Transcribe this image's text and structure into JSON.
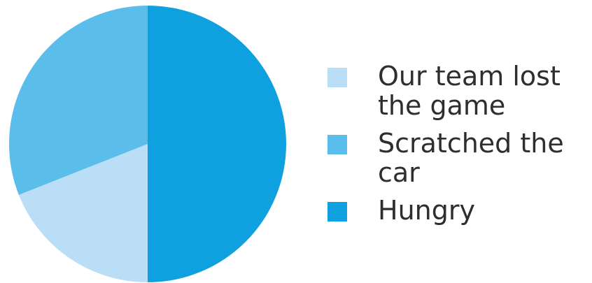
{
  "chart_data": {
    "type": "pie",
    "title": "",
    "legend_position": "right",
    "slices": [
      {
        "label": "Our team lost\nthe game",
        "value": 19,
        "color": "#b9def6"
      },
      {
        "label": "Scratched the car",
        "value": 31,
        "color": "#5bbde9"
      },
      {
        "label": "Hungry",
        "value": 50,
        "color": "#0fa0df"
      }
    ],
    "values_unit": "percent"
  }
}
